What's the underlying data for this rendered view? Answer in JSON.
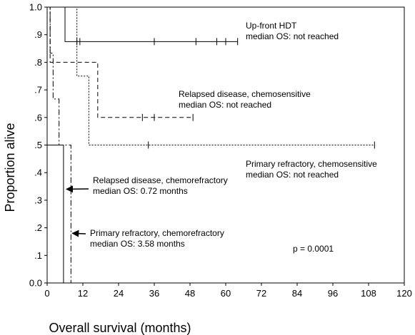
{
  "chart_data": {
    "type": "line",
    "chart_kind": "kaplan-meier",
    "xlabel": "Overall survival (months)",
    "ylabel": "Proportion alive",
    "xlim": [
      0,
      120
    ],
    "ylim": [
      0,
      1
    ],
    "x_ticks": [
      0,
      12,
      24,
      36,
      48,
      60,
      72,
      84,
      96,
      108,
      120
    ],
    "y_ticks": [
      {
        "value": 0.0,
        "label": "0.0"
      },
      {
        "value": 0.1,
        "label": ".1"
      },
      {
        "value": 0.2,
        "label": ".2"
      },
      {
        "value": 0.3,
        "label": ".3"
      },
      {
        "value": 0.4,
        "label": ".4"
      },
      {
        "value": 0.5,
        "label": ".5"
      },
      {
        "value": 0.6,
        "label": ".6"
      },
      {
        "value": 0.7,
        "label": ".7"
      },
      {
        "value": 0.8,
        "label": ".8"
      },
      {
        "value": 0.9,
        "label": ".9"
      },
      {
        "value": 1.0,
        "label": "1.0"
      }
    ],
    "grid": false,
    "series": [
      {
        "name": "Up-front HDT",
        "dash": "solid",
        "steps": [
          [
            0,
            1.0
          ],
          [
            6,
            0.875
          ],
          [
            64,
            0.875
          ]
        ],
        "censored": [
          10,
          11,
          36,
          50,
          57,
          60,
          64
        ]
      },
      {
        "name": "Relapsed disease, chemosensitive",
        "dash": "dashed",
        "steps": [
          [
            0,
            1.0
          ],
          [
            1,
            0.8
          ],
          [
            17,
            0.6
          ],
          [
            49,
            0.6
          ]
        ],
        "censored": [
          32,
          36,
          49
        ]
      },
      {
        "name": "Primary refractory, chemosensitive",
        "dash": "dotted",
        "steps": [
          [
            0,
            1.0
          ],
          [
            10,
            0.75
          ],
          [
            14,
            0.5
          ],
          [
            110,
            0.5
          ]
        ],
        "censored": [
          34,
          110
        ]
      },
      {
        "name": "Relapsed disease, chemorefractory",
        "dash": "solid",
        "steps": [
          [
            0,
            0.5
          ],
          [
            5.5,
            0.0
          ]
        ],
        "censored": []
      },
      {
        "name": "Primary refractory, chemorefractory",
        "dash": "dashdot",
        "steps": [
          [
            0,
            1.0
          ],
          [
            1,
            0.833
          ],
          [
            2,
            0.667
          ],
          [
            4,
            0.5
          ],
          [
            8,
            0.0
          ]
        ],
        "censored": []
      }
    ],
    "annotations": [
      {
        "id": "upfront",
        "lines": [
          "Up-front HDT",
          "median OS: not reached"
        ]
      },
      {
        "id": "relapsed_sens",
        "lines": [
          "Relapsed disease, chemosensitive",
          "median OS: not reached"
        ]
      },
      {
        "id": "primary_sens",
        "lines": [
          "Primary refractory, chemosensitive",
          "median OS: not reached"
        ]
      },
      {
        "id": "relapsed_ref",
        "lines": [
          "Relapsed disease, chemorefractory",
          "median OS: 0.72 months"
        ],
        "arrow_to": [
          6,
          0.34
        ]
      },
      {
        "id": "primary_ref",
        "lines": [
          "Primary refractory, chemorefractory",
          "median OS: 3.58 months"
        ],
        "arrow_to": [
          8,
          0.18
        ]
      },
      {
        "id": "pvalue",
        "lines": [
          "p = 0.0001"
        ]
      }
    ]
  }
}
